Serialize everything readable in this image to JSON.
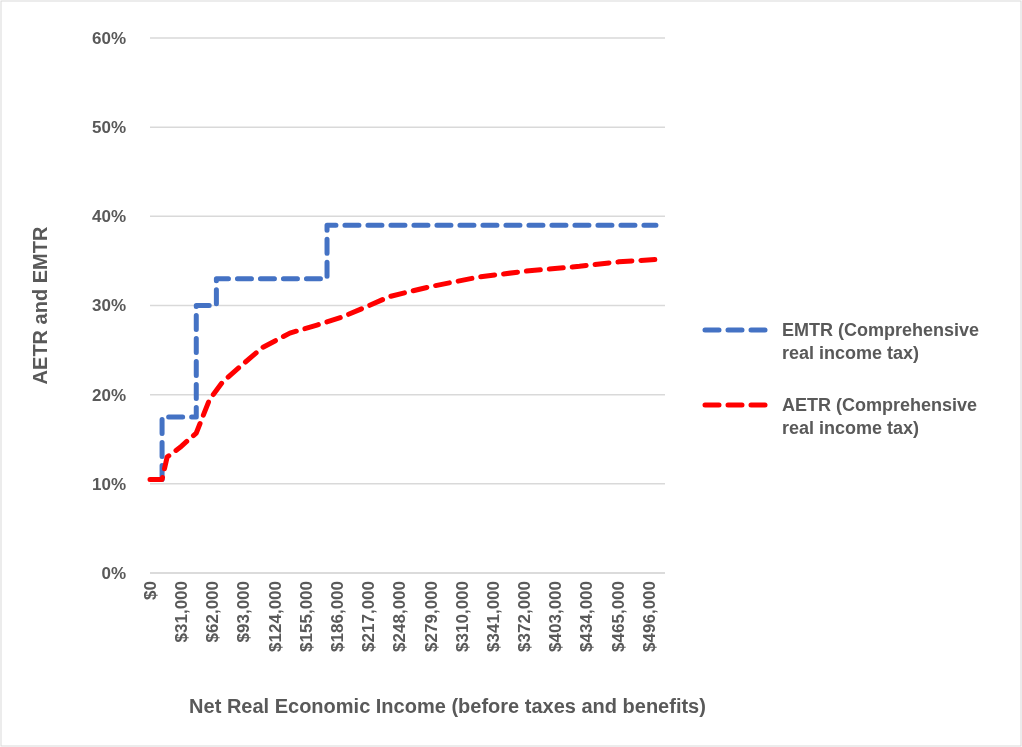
{
  "chart_data": {
    "type": "line",
    "xlabel": "Net Real Economic Income (before taxes and benefits)",
    "ylabel": "AETR and EMTR",
    "xlim": [
      0,
      512000
    ],
    "xticks": [
      {
        "value": 0,
        "label": "$0"
      },
      {
        "value": 31000,
        "label": "$31,000"
      },
      {
        "value": 62000,
        "label": "$62,000"
      },
      {
        "value": 93000,
        "label": "$93,000"
      },
      {
        "value": 124000,
        "label": "$124,000"
      },
      {
        "value": 155000,
        "label": "$155,000"
      },
      {
        "value": 186000,
        "label": "$186,000"
      },
      {
        "value": 217000,
        "label": "$217,000"
      },
      {
        "value": 248000,
        "label": "$248,000"
      },
      {
        "value": 279000,
        "label": "$279,000"
      },
      {
        "value": 310000,
        "label": "$310,000"
      },
      {
        "value": 341000,
        "label": "$341,000"
      },
      {
        "value": 372000,
        "label": "$372,000"
      },
      {
        "value": 403000,
        "label": "$403,000"
      },
      {
        "value": 434000,
        "label": "$434,000"
      },
      {
        "value": 465000,
        "label": "$465,000"
      },
      {
        "value": 496000,
        "label": "$496,000"
      }
    ],
    "ylim": [
      0,
      60
    ],
    "yticks": [
      {
        "value": 0,
        "label": "0%"
      },
      {
        "value": 10,
        "label": "10%"
      },
      {
        "value": 20,
        "label": "20%"
      },
      {
        "value": 30,
        "label": "30%"
      },
      {
        "value": 40,
        "label": "40%"
      },
      {
        "value": 50,
        "label": "50%"
      },
      {
        "value": 60,
        "label": "60%"
      }
    ],
    "grid": "y",
    "legend": "right",
    "line_style": "dashed",
    "marker": "none",
    "series": [
      {
        "name": "EMTR (Comprehensive real income tax)",
        "color": "#4472c4",
        "x": [
          12000,
          12000,
          46000,
          46000,
          66000,
          66000,
          176000,
          176000,
          503000
        ],
        "values": [
          10.5,
          17.5,
          17.5,
          30,
          30,
          33,
          33,
          39,
          39
        ]
      },
      {
        "name": "AETR (Comprehensive real income tax)",
        "color": "#ff0000",
        "x": [
          0,
          12000,
          17000,
          30000,
          46000,
          59000,
          72000,
          89000,
          112000,
          139000,
          166000,
          191000,
          218000,
          238000,
          278000,
          327000,
          377000,
          427000,
          466000,
          509000
        ],
        "values": [
          10.5,
          10.5,
          13,
          14.1,
          15.7,
          19.4,
          21.4,
          23.1,
          25.3,
          26.9,
          27.8,
          28.7,
          30,
          31,
          32.1,
          33.2,
          33.9,
          34.4,
          34.9,
          35.2
        ]
      }
    ]
  }
}
